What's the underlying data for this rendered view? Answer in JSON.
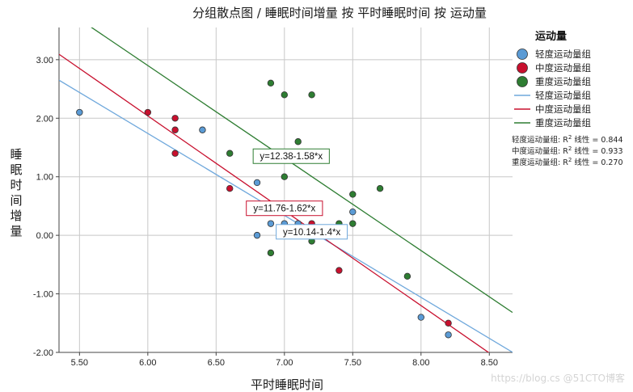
{
  "chart_data": {
    "type": "scatter",
    "title": "分组散点图 / 睡眠时间增量 按 平时睡眠时间 按 运动量",
    "xlabel": "平时睡眠时间",
    "ylabel": "睡眠时间增量",
    "xlim": [
      5.35,
      8.67
    ],
    "ylim": [
      -2.0,
      3.55
    ],
    "xticks": [
      "5.50",
      "6.00",
      "6.50",
      "7.00",
      "7.50",
      "8.00",
      "8.50"
    ],
    "yticks": [
      "3.00",
      "2.00",
      "1.00",
      "0.00",
      "-1.00",
      "-2.00"
    ],
    "grid": true,
    "legend_title": "运动量",
    "legend_position": "right",
    "series": [
      {
        "name": "轻度运动量组",
        "color": "#5b9bd5",
        "points": [
          [
            5.5,
            2.1
          ],
          [
            6.4,
            1.8
          ],
          [
            6.8,
            0.9
          ],
          [
            6.8,
            0.0
          ],
          [
            6.9,
            0.2
          ],
          [
            7.0,
            0.2
          ],
          [
            7.1,
            0.2
          ],
          [
            7.4,
            0.1
          ],
          [
            7.5,
            0.4
          ],
          [
            8.0,
            -1.4
          ],
          [
            8.2,
            -1.7
          ]
        ],
        "fit": {
          "intercept": 10.14,
          "slope": -1.4,
          "label": "y=10.14-1.4*x",
          "legend": "轻度运动量组",
          "r2": "0.844"
        }
      },
      {
        "name": "中度运动量组",
        "color": "#c8102e",
        "points": [
          [
            6.0,
            2.1
          ],
          [
            6.2,
            2.0
          ],
          [
            6.2,
            1.8
          ],
          [
            6.2,
            1.4
          ],
          [
            6.6,
            0.8
          ],
          [
            7.2,
            0.2
          ],
          [
            7.4,
            -0.6
          ],
          [
            8.2,
            -1.5
          ]
        ],
        "fit": {
          "intercept": 11.76,
          "slope": -1.62,
          "label": "y=11.76-1.62*x",
          "legend": "中度运动量组",
          "r2": "0.933"
        }
      },
      {
        "name": "重度运动量组",
        "color": "#2e7d32",
        "points": [
          [
            6.6,
            1.4
          ],
          [
            6.9,
            2.6
          ],
          [
            6.9,
            1.4
          ],
          [
            6.9,
            -0.3
          ],
          [
            7.0,
            2.4
          ],
          [
            7.0,
            1.0
          ],
          [
            7.1,
            1.6
          ],
          [
            7.2,
            2.4
          ],
          [
            7.2,
            -0.1
          ],
          [
            7.4,
            0.2
          ],
          [
            7.5,
            0.7
          ],
          [
            7.5,
            0.2
          ],
          [
            7.7,
            0.8
          ],
          [
            7.9,
            -0.7
          ]
        ],
        "fit": {
          "intercept": 12.38,
          "slope": -1.58,
          "label": "y=12.38-1.58*x",
          "legend": "重度运动量组",
          "r2": "0.270"
        }
      }
    ],
    "r2_prefix": "R",
    "r2_superscript": "2",
    "r2_linear_label": "线性 =",
    "watermark": "https://blog.cs @51CTO博客"
  },
  "colors": {
    "grid": "#c8c8c8",
    "axis": "#444444",
    "blue_point": "#5b9bd5",
    "blue_line": "#6fa8dc",
    "red": "#c8102e",
    "green": "#2e7d32",
    "background": "#ffffff"
  }
}
